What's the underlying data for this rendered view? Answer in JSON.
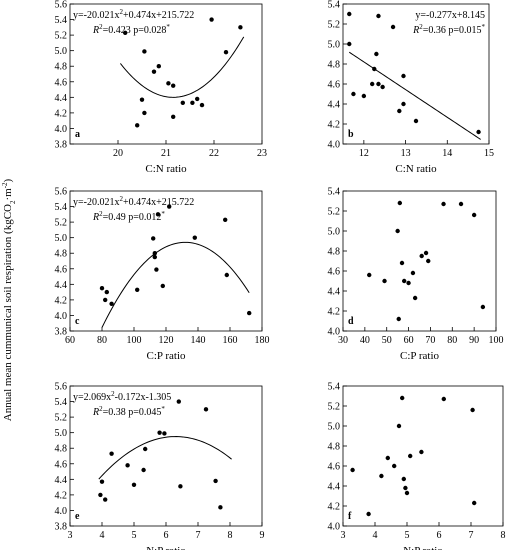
{
  "figure": {
    "ylabel_shared": "Annual mean cummunical soil respiration (kgCO2·m-2)"
  },
  "chart_data": [
    {
      "type": "scatter",
      "panel": "a",
      "xlabel": "C:N ratio",
      "xlim": [
        19,
        23
      ],
      "xticks": [
        20,
        21,
        22,
        23
      ],
      "ylim": [
        3.8,
        5.6
      ],
      "yticks": [
        3.8,
        4.0,
        4.2,
        4.4,
        4.6,
        4.8,
        5.0,
        5.2,
        5.4,
        5.6
      ],
      "ydecimals": 1,
      "legend_position": "top-left",
      "equation": "y=-20.021x2+0.474x+215.722",
      "stats": "R2=0.423  p=0.028*",
      "fit": {
        "kind": "quadratic",
        "x_range": [
          20.05,
          22.62
        ],
        "vertex": [
          21.15,
          4.4
        ],
        "a": 0.36
      },
      "points": [
        [
          20.15,
          5.23
        ],
        [
          20.55,
          4.99
        ],
        [
          20.75,
          4.73
        ],
        [
          20.85,
          4.8
        ],
        [
          21.05,
          4.58
        ],
        [
          21.15,
          4.55
        ],
        [
          21.35,
          4.33
        ],
        [
          21.55,
          4.33
        ],
        [
          21.65,
          4.38
        ],
        [
          20.4,
          4.04
        ],
        [
          20.5,
          4.37
        ],
        [
          20.55,
          4.2
        ],
        [
          21.15,
          4.15
        ],
        [
          21.75,
          4.3
        ],
        [
          21.95,
          5.4
        ],
        [
          22.25,
          4.98
        ],
        [
          22.55,
          5.3
        ]
      ]
    },
    {
      "type": "scatter",
      "panel": "b",
      "xlabel": "C:N ratio",
      "xlim": [
        11.5,
        15
      ],
      "xticks": [
        12,
        13,
        14,
        15
      ],
      "ylim": [
        4.0,
        5.4
      ],
      "yticks": [
        4.0,
        4.2,
        4.4,
        4.6,
        4.8,
        5.0,
        5.2,
        5.4
      ],
      "ydecimals": 1,
      "legend_position": "top-right",
      "equation": "y=-0.277x+8.145",
      "stats": "R2=0.36  p=0.015*",
      "fit": {
        "kind": "linear",
        "x_range": [
          11.65,
          14.8
        ],
        "slope": -0.277,
        "intercept": 8.145
      },
      "points": [
        [
          11.65,
          5.3
        ],
        [
          11.65,
          5.0
        ],
        [
          11.75,
          4.5
        ],
        [
          12.0,
          4.48
        ],
        [
          12.2,
          4.6
        ],
        [
          12.25,
          4.75
        ],
        [
          12.3,
          4.9
        ],
        [
          12.35,
          5.28
        ],
        [
          12.35,
          4.6
        ],
        [
          12.45,
          4.57
        ],
        [
          12.7,
          5.17
        ],
        [
          12.85,
          4.33
        ],
        [
          12.95,
          4.4
        ],
        [
          12.95,
          4.68
        ],
        [
          13.25,
          4.23
        ],
        [
          14.75,
          4.12
        ]
      ]
    },
    {
      "type": "scatter",
      "panel": "c",
      "xlabel": "C:P ratio",
      "xlim": [
        60,
        180
      ],
      "xticks": [
        60,
        80,
        100,
        120,
        140,
        160,
        180
      ],
      "ylim": [
        3.8,
        5.6
      ],
      "yticks": [
        3.8,
        4.0,
        4.2,
        4.4,
        4.6,
        4.8,
        5.0,
        5.2,
        5.4,
        5.6
      ],
      "ydecimals": 1,
      "legend_position": "top-left",
      "equation": "y=-20.021x2+0.474x+215.722",
      "stats": "R2=0.49  p=0.012*",
      "fit": {
        "kind": "quadratic",
        "x_range": [
          80,
          172
        ],
        "vertex": [
          132,
          4.94
        ],
        "a": -0.000405
      },
      "points": [
        [
          80,
          4.35
        ],
        [
          82,
          4.2
        ],
        [
          83,
          4.3
        ],
        [
          86,
          4.15
        ],
        [
          102,
          4.33
        ],
        [
          112,
          4.99
        ],
        [
          113,
          4.75
        ],
        [
          113,
          4.8
        ],
        [
          114,
          4.59
        ],
        [
          115,
          5.3
        ],
        [
          118,
          4.38
        ],
        [
          122,
          5.4
        ],
        [
          138,
          5.0
        ],
        [
          157,
          5.23
        ],
        [
          158,
          4.52
        ],
        [
          172,
          4.03
        ]
      ]
    },
    {
      "type": "scatter",
      "panel": "d",
      "xlabel": "C:P ratio",
      "xlim": [
        30,
        100
      ],
      "xticks": [
        30,
        40,
        50,
        60,
        70,
        80,
        90,
        100
      ],
      "ylim": [
        4.0,
        5.4
      ],
      "yticks": [
        4.0,
        4.2,
        4.4,
        4.6,
        4.8,
        5.0,
        5.2,
        5.4
      ],
      "ydecimals": 1,
      "legend_position": "none",
      "equation": "",
      "stats": "",
      "fit": null,
      "points": [
        [
          42,
          4.56
        ],
        [
          49,
          4.5
        ],
        [
          55,
          5.0
        ],
        [
          55.5,
          4.12
        ],
        [
          56,
          5.28
        ],
        [
          57,
          4.68
        ],
        [
          58,
          4.5
        ],
        [
          60,
          4.48
        ],
        [
          62,
          4.58
        ],
        [
          63,
          4.33
        ],
        [
          66,
          4.75
        ],
        [
          68,
          4.78
        ],
        [
          69,
          4.7
        ],
        [
          76,
          5.27
        ],
        [
          84,
          5.27
        ],
        [
          90,
          5.16
        ],
        [
          94,
          4.24
        ]
      ]
    },
    {
      "type": "scatter",
      "panel": "e",
      "xlabel": "N:P ratio",
      "xlim": [
        3,
        9
      ],
      "xticks": [
        3,
        4,
        5,
        6,
        7,
        8,
        9
      ],
      "ylim": [
        3.8,
        5.6
      ],
      "yticks": [
        3.8,
        4.0,
        4.2,
        4.4,
        4.6,
        4.8,
        5.0,
        5.2,
        5.4,
        5.6
      ],
      "ydecimals": 1,
      "legend_position": "top-left",
      "equation": "y=2.069x2-0.172x-1.305",
      "stats": "R2=0.38  p=0.045*",
      "fit": {
        "kind": "quadratic",
        "x_range": [
          3.9,
          8.05
        ],
        "vertex": [
          6.3,
          4.95
        ],
        "a": -0.095
      },
      "points": [
        [
          3.95,
          4.2
        ],
        [
          4.0,
          4.37
        ],
        [
          4.1,
          4.14
        ],
        [
          4.3,
          4.73
        ],
        [
          4.8,
          4.58
        ],
        [
          5.0,
          4.33
        ],
        [
          5.3,
          4.52
        ],
        [
          5.35,
          4.79
        ],
        [
          5.8,
          5.0
        ],
        [
          5.95,
          4.99
        ],
        [
          6.4,
          5.4
        ],
        [
          6.45,
          4.31
        ],
        [
          7.25,
          5.3
        ],
        [
          7.55,
          4.38
        ],
        [
          7.7,
          4.04
        ]
      ]
    },
    {
      "type": "scatter",
      "panel": "f",
      "xlabel": "N:P ratio",
      "xlim": [
        3,
        8
      ],
      "xticks": [
        3,
        4,
        5,
        6,
        7,
        8
      ],
      "ylim": [
        4.0,
        5.4
      ],
      "yticks": [
        4.0,
        4.2,
        4.4,
        4.6,
        4.8,
        5.0,
        5.2,
        5.4
      ],
      "ydecimals": 1,
      "legend_position": "none",
      "equation": "",
      "stats": "",
      "fit": null,
      "points": [
        [
          3.3,
          4.56
        ],
        [
          3.8,
          4.12
        ],
        [
          4.2,
          4.5
        ],
        [
          4.4,
          4.68
        ],
        [
          4.6,
          4.6
        ],
        [
          4.75,
          5.0
        ],
        [
          4.85,
          5.28
        ],
        [
          4.9,
          4.47
        ],
        [
          4.95,
          4.38
        ],
        [
          5.0,
          4.33
        ],
        [
          5.1,
          4.7
        ],
        [
          5.45,
          4.74
        ],
        [
          6.15,
          5.27
        ],
        [
          7.05,
          5.16
        ],
        [
          7.1,
          4.23
        ]
      ]
    }
  ]
}
